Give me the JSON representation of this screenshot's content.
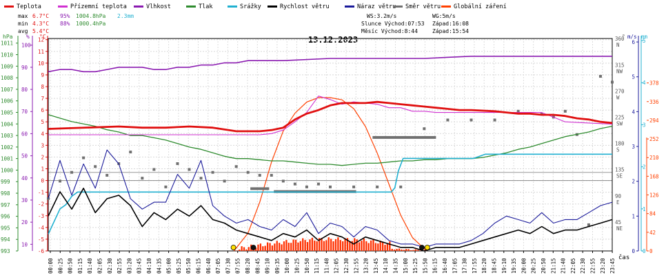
{
  "legend": [
    {
      "name": "Teplota",
      "color": "#e01010"
    },
    {
      "name": "Přízemní teplota",
      "color": "#d030d0"
    },
    {
      "name": "Vlhkost",
      "color": "#8a1ab0"
    },
    {
      "name": "Tlak",
      "color": "#2e8b2e"
    },
    {
      "name": "Srážky",
      "color": "#20b0d0"
    },
    {
      "name": "Rychlost větru",
      "color": "#000000"
    },
    {
      "name": "Náraz větru",
      "color": "#1a1a9a"
    },
    {
      "name": "Směr větru",
      "color": "#707070"
    },
    {
      "name": "Globální záření",
      "color": "#ff4000"
    }
  ],
  "stats": {
    "max": {
      "label": "max",
      "temp": "6.7°C",
      "hum": "95%",
      "press": "1004.8hPa",
      "rain": "2.3mm"
    },
    "min": {
      "label": "min",
      "temp": "4.3°C",
      "hum": "88%",
      "press": "1000.4hPa"
    },
    "avg": {
      "label": "avg",
      "temp": "5.4°C"
    }
  },
  "info": {
    "ws": "WS:3.2m/s",
    "wg": "WG:5m/s",
    "slunce": "Slunce Východ:07:53",
    "slunce_zapad": "Západ:16:08",
    "mesic": "Měsíc  Východ:8:44",
    "mesic_zapad": "Západ:15:54"
  },
  "chart_data": {
    "type": "line",
    "title": "13.12.2023",
    "xlabel": "čas",
    "x_ticks": [
      "00:00",
      "00:25",
      "00:50",
      "01:15",
      "01:40",
      "02:05",
      "02:30",
      "02:55",
      "03:20",
      "03:45",
      "04:10",
      "04:35",
      "05:00",
      "05:25",
      "05:50",
      "06:15",
      "06:40",
      "07:05",
      "07:30",
      "07:55",
      "08:20",
      "08:45",
      "09:10",
      "09:35",
      "10:00",
      "10:25",
      "10:50",
      "11:15",
      "11:40",
      "12:05",
      "12:30",
      "12:55",
      "13:20",
      "13:45",
      "14:10",
      "14:35",
      "15:00",
      "15:25",
      "15:50",
      "16:15",
      "16:40",
      "17:05",
      "17:30",
      "17:55",
      "18:20",
      "18:45",
      "19:10",
      "19:35",
      "20:00",
      "20:25",
      "20:50",
      "21:15",
      "21:40",
      "22:05",
      "22:30",
      "22:55",
      "23:20",
      "23:45"
    ],
    "axes": {
      "hpa": {
        "label": "hPa",
        "ticks": [
          "1011",
          "1010",
          "1009",
          "1008",
          "1007",
          "1006",
          "1005",
          "1004",
          "1003",
          "1002",
          "1001",
          "1000",
          "999",
          "998",
          "997",
          "996",
          "995",
          "994",
          "993"
        ]
      },
      "pct": {
        "label": "%",
        "ticks": [
          "100",
          "90",
          "80",
          "70",
          "60",
          "50",
          "40",
          "30",
          "20",
          "10"
        ]
      },
      "degc": {
        "label": "°C",
        "ticks": [
          "12",
          "11",
          "10",
          "9",
          "8",
          "7",
          "6",
          "5",
          "4",
          "3",
          "2",
          "1",
          "0",
          "-1",
          "-2",
          "-3",
          "-4",
          "-5",
          "-6"
        ]
      },
      "dir": {
        "label": "°",
        "ticks": [
          "360 N",
          "315 NW",
          "270 W",
          "225 SW",
          "180 S",
          "135 SE",
          "90 E",
          "45 NE"
        ]
      },
      "ms": {
        "label": "m/s",
        "ticks": [
          "6",
          "5",
          "4",
          "3",
          "2",
          "1",
          "0"
        ]
      },
      "mm": {
        "label": "mm",
        "ticks": [
          "5",
          "4",
          "3",
          "2",
          "1",
          "0"
        ]
      },
      "wm2": {
        "label": "W/m²",
        "ticks": [
          "378",
          "336",
          "294",
          "252",
          "210",
          "168",
          "126",
          "84",
          "42",
          "0"
        ]
      }
    },
    "series": [
      {
        "name": "Teplota",
        "unit": "°C",
        "x": [
          0,
          3,
          4,
          5,
          6,
          7,
          8,
          8.5,
          9,
          9.5,
          10,
          10.5,
          11,
          11.5,
          12,
          12.5,
          13,
          13.5,
          14,
          14.5,
          15,
          15.5,
          16,
          16.5,
          17,
          17.5,
          18,
          19,
          19.5,
          20,
          20.5,
          21,
          21.5,
          22,
          22.5,
          23,
          23.5,
          24
        ],
        "values": [
          4.4,
          4.6,
          4.5,
          4.5,
          4.6,
          4.5,
          4.2,
          4.2,
          4.2,
          4.3,
          4.5,
          5.2,
          5.7,
          6.0,
          6.4,
          6.6,
          6.6,
          6.6,
          6.7,
          6.6,
          6.5,
          6.4,
          6.3,
          6.2,
          6.1,
          6.0,
          6.0,
          5.9,
          5.8,
          5.7,
          5.7,
          5.6,
          5.6,
          5.5,
          5.3,
          5.2,
          5.0,
          4.9
        ]
      },
      {
        "name": "Přízemní teplota",
        "unit": "°C",
        "x": [
          0,
          8.5,
          9,
          9.5,
          10,
          10.5,
          11,
          11.5,
          12,
          12.5,
          13,
          13.5,
          14,
          14.5,
          15,
          15.5,
          16,
          16.5,
          17,
          18,
          19,
          20,
          21,
          22,
          23,
          24
        ],
        "values": [
          3.9,
          3.9,
          3.9,
          4.0,
          4.3,
          5.0,
          5.8,
          7.2,
          6.9,
          6.5,
          6.7,
          6.6,
          6.5,
          6.2,
          6.2,
          5.9,
          5.9,
          5.8,
          5.8,
          5.8,
          5.8,
          5.8,
          5.8,
          5.0,
          4.9,
          4.8
        ]
      },
      {
        "name": "Vlhkost",
        "unit": "%",
        "x": [
          0,
          0.5,
          1,
          1.5,
          2,
          2.5,
          3,
          3.5,
          4,
          4.5,
          5,
          5.5,
          6,
          6.5,
          7,
          7.5,
          8,
          8.5,
          9,
          10,
          12,
          14,
          16,
          18,
          20,
          22,
          24
        ],
        "values": [
          88,
          89,
          89,
          88,
          88,
          89,
          90,
          90,
          90,
          89,
          89,
          90,
          90,
          91,
          91,
          92,
          92,
          93,
          93,
          93,
          94,
          94,
          94,
          95,
          95,
          95,
          95
        ]
      },
      {
        "name": "Tlak",
        "unit": "hPa",
        "x": [
          0,
          0.5,
          1,
          1.5,
          2,
          2.5,
          3,
          3.5,
          4,
          4.5,
          5,
          5.5,
          6,
          6.5,
          7,
          7.5,
          8,
          8.5,
          9,
          9.5,
          10,
          10.5,
          11,
          11.5,
          12,
          12.5,
          13,
          13.5,
          14,
          14.5,
          15,
          15.5,
          16,
          16.5,
          17,
          17.5,
          18,
          18.5,
          19,
          19.5,
          20,
          20.5,
          21,
          21.5,
          22,
          22.5,
          23,
          23.5,
          24
        ],
        "values": [
          1004.8,
          1004.5,
          1004.2,
          1004.0,
          1003.8,
          1003.5,
          1003.3,
          1003.0,
          1003.0,
          1002.8,
          1002.6,
          1002.3,
          1002.0,
          1001.8,
          1001.5,
          1001.2,
          1001.0,
          1001.0,
          1000.9,
          1000.8,
          1000.8,
          1000.7,
          1000.6,
          1000.5,
          1000.5,
          1000.4,
          1000.5,
          1000.6,
          1000.6,
          1000.7,
          1000.8,
          1000.8,
          1000.9,
          1000.9,
          1001.0,
          1001.0,
          1001.0,
          1001.1,
          1001.3,
          1001.5,
          1001.8,
          1002.0,
          1002.3,
          1002.6,
          1002.9,
          1003.1,
          1003.3,
          1003.6,
          1003.8
        ]
      },
      {
        "name": "Srážky",
        "unit": "mm",
        "x": [
          0,
          0.25,
          0.5,
          0.75,
          1,
          1.25,
          14.6,
          14.75,
          14.9,
          15.1,
          17,
          18.1,
          18.6,
          24
        ],
        "values": [
          0.4,
          0.7,
          1.0,
          1.1,
          1.3,
          1.4,
          1.4,
          1.5,
          1.9,
          2.2,
          2.2,
          2.2,
          2.3,
          2.3
        ]
      },
      {
        "name": "Rychlost větru",
        "unit": "m/s",
        "x": [
          0,
          0.5,
          1,
          1.5,
          2,
          2.5,
          3,
          3.5,
          4,
          4.5,
          5,
          5.5,
          6,
          6.5,
          7,
          7.5,
          8,
          8.5,
          9,
          9.5,
          10,
          10.5,
          11,
          11.5,
          12,
          12.5,
          13,
          13.5,
          14,
          14.5,
          15,
          15.5,
          16,
          16.5,
          17,
          17.5,
          18,
          18.5,
          19,
          19.5,
          20,
          20.5,
          21,
          21.5,
          22,
          22.5,
          23,
          23.5,
          24
        ],
        "values": [
          1.0,
          1.7,
          1.2,
          1.8,
          1.1,
          1.5,
          1.6,
          1.3,
          0.7,
          1.1,
          0.9,
          1.2,
          1.0,
          1.3,
          0.9,
          0.8,
          0.6,
          0.5,
          0.4,
          0.3,
          0.5,
          0.4,
          0.6,
          0.3,
          0.5,
          0.4,
          0.2,
          0.4,
          0.3,
          0.2,
          0.1,
          0.1,
          0.0,
          0.1,
          0.1,
          0.1,
          0.2,
          0.3,
          0.4,
          0.5,
          0.6,
          0.5,
          0.7,
          0.5,
          0.6,
          0.6,
          0.7,
          0.8,
          0.9
        ]
      },
      {
        "name": "Náraz větru",
        "unit": "m/s",
        "x": [
          0,
          0.5,
          1,
          1.5,
          2,
          2.5,
          3,
          3.5,
          4,
          4.5,
          5,
          5.5,
          6,
          6.5,
          7,
          7.5,
          8,
          8.5,
          9,
          9.5,
          10,
          10.5,
          11,
          11.5,
          12,
          12.5,
          13,
          13.5,
          14,
          14.5,
          15,
          15.5,
          16,
          16.5,
          17,
          17.5,
          18,
          18.5,
          19,
          19.5,
          20,
          20.5,
          21,
          21.5,
          22,
          22.5,
          23,
          23.5,
          24
        ],
        "values": [
          1.5,
          2.6,
          1.6,
          2.5,
          1.8,
          2.9,
          2.5,
          1.5,
          1.2,
          1.4,
          1.4,
          2.2,
          1.8,
          2.6,
          1.3,
          1.0,
          0.8,
          0.9,
          0.7,
          0.6,
          0.9,
          0.7,
          1.1,
          0.5,
          0.8,
          0.7,
          0.4,
          0.7,
          0.6,
          0.3,
          0.2,
          0.2,
          0.1,
          0.2,
          0.2,
          0.2,
          0.3,
          0.5,
          0.8,
          1.0,
          0.9,
          0.8,
          1.1,
          0.8,
          0.9,
          0.9,
          1.1,
          1.3,
          1.4
        ]
      },
      {
        "name": "Směr větru",
        "unit": "°",
        "x": [
          0,
          0.5,
          1,
          1.5,
          2,
          2.5,
          3,
          3.5,
          4,
          4.5,
          5,
          5.5,
          6,
          6.5,
          7,
          7.5,
          8,
          8.5,
          9,
          9.5,
          10,
          10.5,
          11,
          11.5,
          12,
          13,
          14,
          15,
          16,
          17,
          18,
          19,
          20,
          21,
          21.5,
          22,
          22.5,
          23,
          23.5,
          24
        ],
        "values": [
          90,
          120,
          135,
          160,
          145,
          130,
          150,
          170,
          125,
          140,
          110,
          150,
          140,
          125,
          135,
          120,
          145,
          135,
          130,
          130,
          120,
          115,
          110,
          115,
          110,
          110,
          110,
          110,
          210,
          225,
          225,
          225,
          240,
          235,
          230,
          240,
          200,
          45,
          300,
          290
        ],
        "minimal_note": ""
      },
      {
        "name": "Globální záření",
        "unit": "W/m²",
        "x": [
          7.9,
          8.5,
          9,
          9.5,
          10,
          10.5,
          11,
          11.5,
          12,
          12.5,
          13,
          13.5,
          14,
          14.5,
          15,
          15.5,
          16,
          16.1
        ],
        "values": [
          0,
          40,
          110,
          200,
          270,
          310,
          335,
          345,
          345,
          340,
          320,
          280,
          220,
          150,
          80,
          30,
          5,
          0
        ]
      }
    ],
    "grid": true,
    "legend_position": "top"
  }
}
